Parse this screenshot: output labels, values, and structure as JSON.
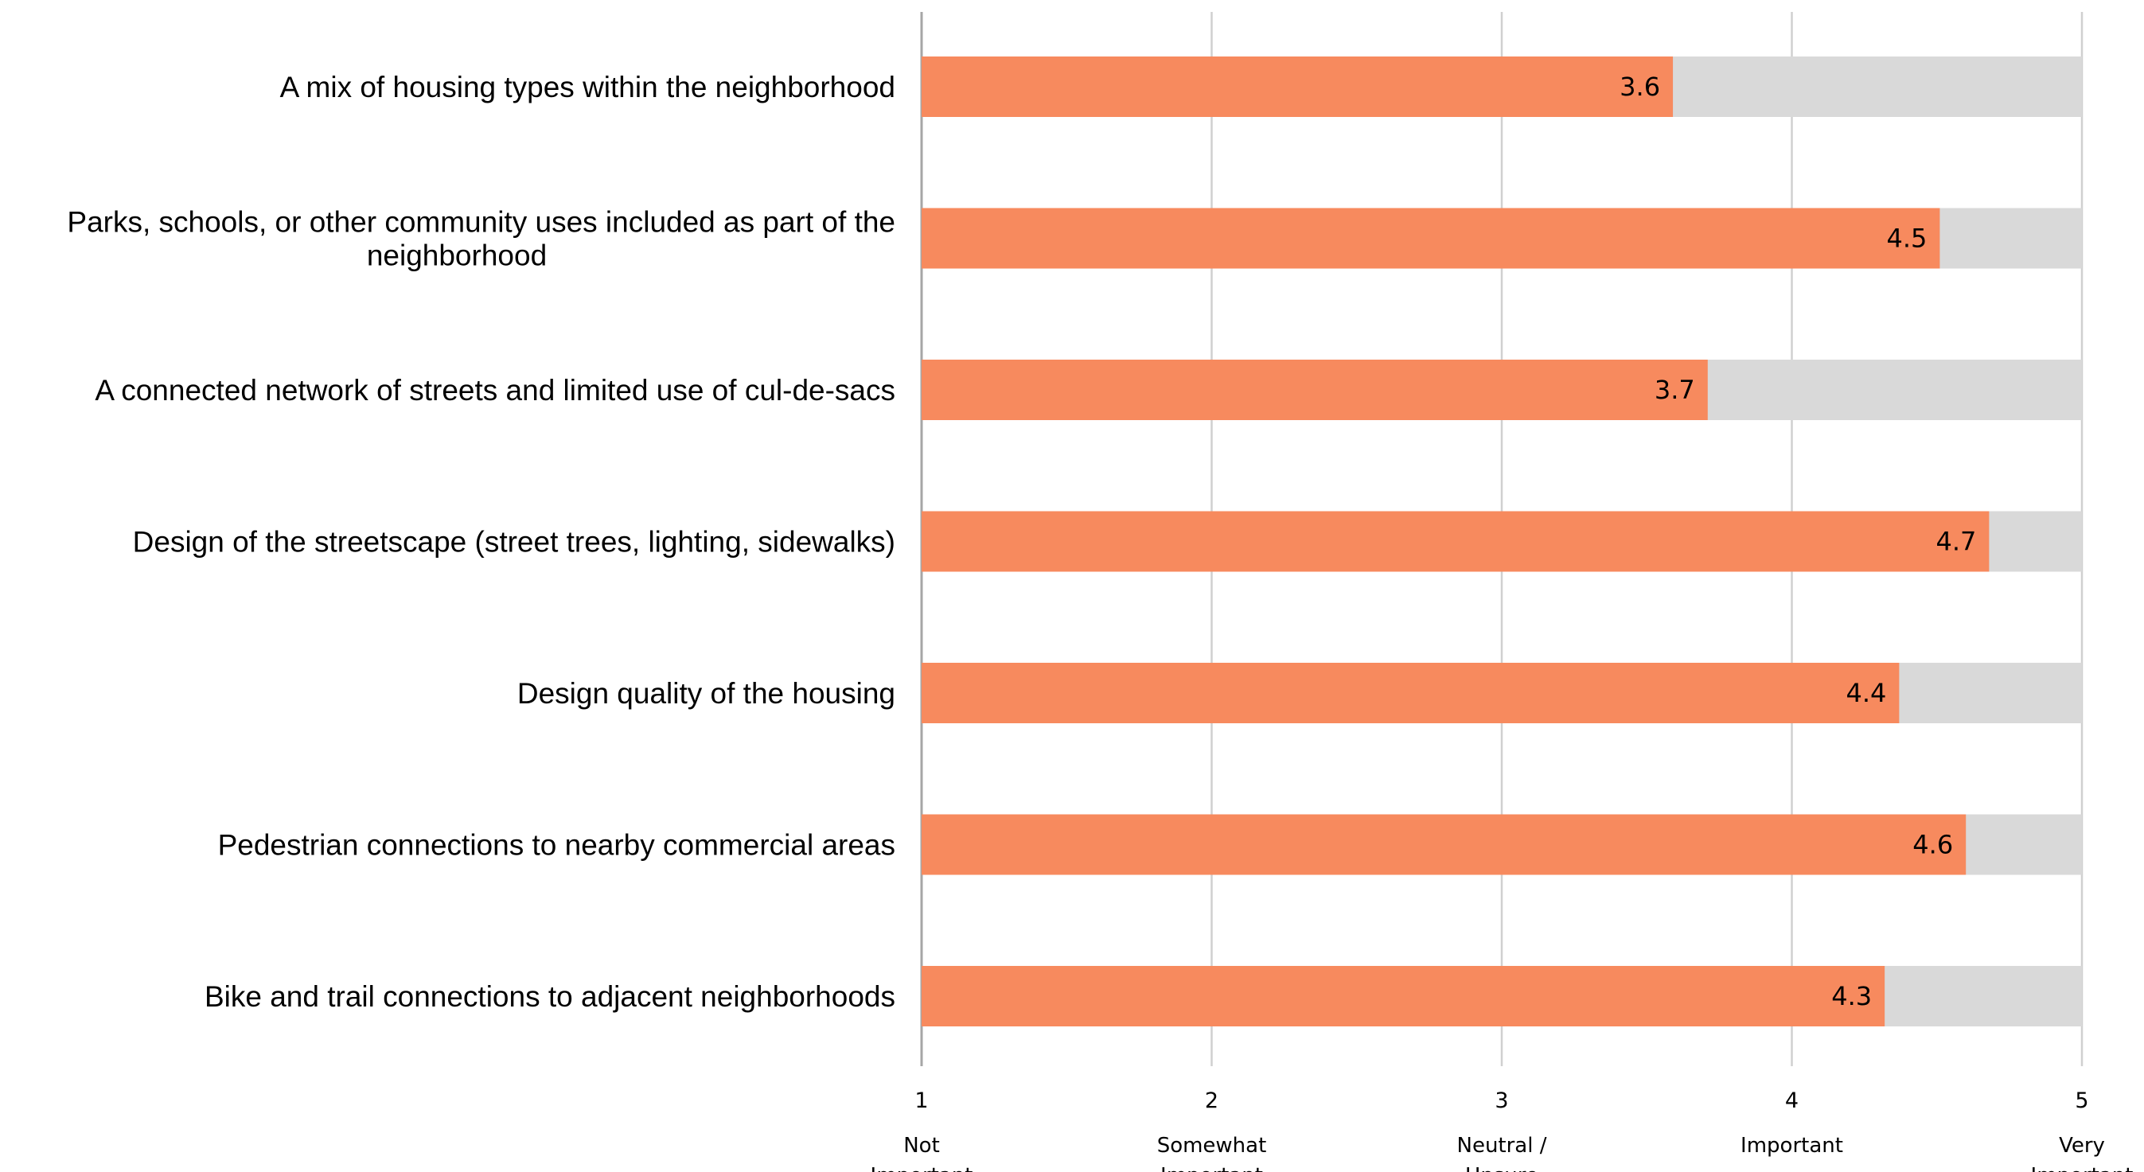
{
  "chart_data": {
    "type": "bar",
    "orientation": "horizontal",
    "categories": [
      "A mix of housing types within the neighborhood",
      "Parks, schools, or other community uses included as part of the neighborhood",
      "A connected network of streets and limited use of cul-de-sacs",
      "Design of the streetscape (street trees, lighting, sidewalks)",
      "Design quality of the housing",
      "Pedestrian connections to nearby commercial areas",
      "Bike and trail connections to adjacent neighborhoods"
    ],
    "category_lines": [
      [
        "A mix of housing types within the neighborhood"
      ],
      [
        "Parks, schools, or other community uses included as part of the",
        "neighborhood"
      ],
      [
        "A connected network of streets and limited use of cul-de-sacs"
      ],
      [
        "Design of the streetscape (street trees, lighting, sidewalks)"
      ],
      [
        "Design quality of the housing"
      ],
      [
        "Pedestrian connections to nearby commercial areas"
      ],
      [
        "Bike and trail connections to adjacent neighborhoods"
      ]
    ],
    "values": [
      3.6,
      4.5,
      3.7,
      4.7,
      4.4,
      4.6,
      4.3
    ],
    "value_labels": [
      "3.6",
      "4.5",
      "3.7",
      "4.7",
      "4.4",
      "4.6",
      "4.3"
    ],
    "precise_values": [
      3.59,
      4.51,
      3.71,
      4.68,
      4.37,
      4.6,
      4.32
    ],
    "xlim": [
      1,
      5
    ],
    "ticks": [
      {
        "value": 1,
        "label": "1",
        "desc": [
          "Not",
          "Important"
        ]
      },
      {
        "value": 2,
        "label": "2",
        "desc": [
          "Somewhat",
          "Important"
        ]
      },
      {
        "value": 3,
        "label": "3",
        "desc": [
          "Neutral /",
          "Unsure"
        ]
      },
      {
        "value": 4,
        "label": "4",
        "desc": [
          "Important"
        ]
      },
      {
        "value": 5,
        "label": "5",
        "desc": [
          "Very",
          "Important"
        ]
      }
    ],
    "grid": true,
    "legend": "none",
    "colors": {
      "bar": "#F78A5E",
      "background_bar": "#D9D9D9",
      "grid": "#D0D0D0",
      "axis": "#A6A6A6"
    }
  }
}
